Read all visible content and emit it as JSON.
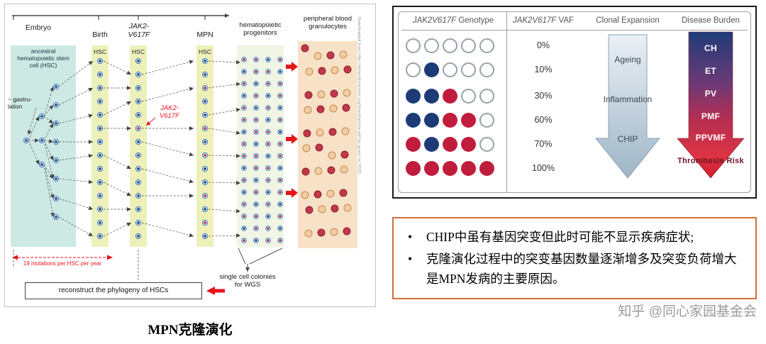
{
  "left_panel": {
    "caption": "MPN克隆演化",
    "timeline": {
      "embryo": "Embryo",
      "birth": "Birth",
      "mpn": "MPN",
      "progenitors_line1": "hematopoietic",
      "progenitors_line2": "progenitors",
      "granulocytes_line1": "peripheral blood",
      "granulocytes_line2": "granulocytes"
    },
    "jak2_gene": {
      "line1": "JAK2-",
      "line2": "V617F"
    },
    "labels": {
      "ancestral_hsc": "ancestral hematopoietic stem cell (HSC)",
      "gastrulation_line1": "~ gastru-",
      "gastrulation_line2": "lation",
      "hsc": "HSC",
      "mutations_per_year": "19 mutations per HSC per year",
      "reconstruct_box": "reconstruct the phylogeny of HSCs",
      "single_cell_line1": "single cell colonies",
      "single_cell_line2": "for WGS"
    },
    "side_text": "Downloaded from http://ashpublications.org/blood/article-pdf by guest on 2023"
  },
  "right_panel": {
    "table": {
      "genotype_header": {
        "italic": "JAK2V617F",
        "rest": " Genotype"
      },
      "vaf_header": {
        "italic": "JAK2V617F",
        "rest": " VAF"
      },
      "clonal_header": "Clonal Expansion",
      "disease_header": "Disease Burden"
    },
    "notes": {
      "marker": "•",
      "bullets": [
        "CHIP中虽有基因突变但此时可能不显示疾病症状;",
        "克隆演化过程中的突变基因数量逐渐增多及突变负荷增大是MPN发病的主要原因。"
      ]
    },
    "watermark": "知乎 @同心家园基金会"
  },
  "chart_data": {
    "type": "table",
    "title": "JAK2V617F genotype, VAF, clonal expansion and disease burden",
    "columns": [
      "JAK2V617F Genotype",
      "JAK2V617F VAF",
      "Clonal Expansion",
      "Disease Burden"
    ],
    "genotype_rows": [
      {
        "vaf": "0%",
        "cells": [
          "white",
          "white",
          "white",
          "white",
          "white"
        ]
      },
      {
        "vaf": "10%",
        "cells": [
          "white",
          "blue",
          "white",
          "white",
          "white"
        ]
      },
      {
        "vaf": "30%",
        "cells": [
          "blue",
          "blue",
          "red",
          "white",
          "white"
        ]
      },
      {
        "vaf": "60%",
        "cells": [
          "blue",
          "blue",
          "red",
          "red",
          "white"
        ]
      },
      {
        "vaf": "70%",
        "cells": [
          "red",
          "blue",
          "red",
          "red",
          "white"
        ]
      },
      {
        "vaf": "100%",
        "cells": [
          "red",
          "red",
          "red",
          "red",
          "red"
        ]
      }
    ],
    "clonal_expansion_labels": [
      "Ageing",
      "Inflammation",
      "CHIP"
    ],
    "disease_burden_labels": [
      "CH",
      "ET",
      "PV",
      "PMF",
      "PPVMF",
      "Thrombosis Risk"
    ]
  },
  "colors": {
    "het_blue": "#1d3b76",
    "hom_red": "#c01d3c",
    "wild_edge": "#98a0a8",
    "accent_red": "#e8131a",
    "hsc_ring": "#3a77b5",
    "hsc_fill": "#d6e9f6",
    "granulocyte_red": "#c23848",
    "granulocyte_red_edge": "#8c1f30",
    "granulocyte_tan": "#f1cda2",
    "granulocyte_tan_edge": "#c8874b",
    "note_border": "#d0703a"
  }
}
